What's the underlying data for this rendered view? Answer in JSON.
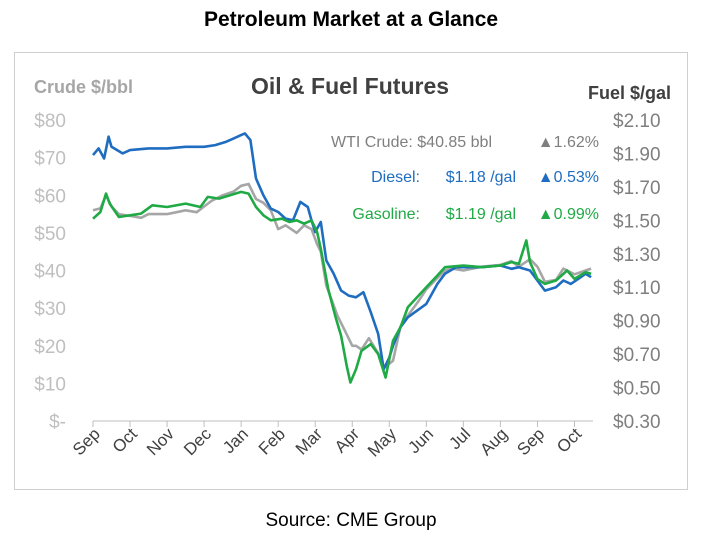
{
  "page": {
    "title": "Petroleum Market at a Glance",
    "source": "Source: CME Group"
  },
  "chart_data": {
    "type": "line",
    "title": "Oil & Fuel Futures",
    "ylabel_left": "Crude $/bbl",
    "ylabel_right": "Fuel $/gal",
    "left_axis": {
      "min": 0,
      "max": 80,
      "ticks": [
        "$-",
        "$10",
        "$20",
        "$30",
        "$40",
        "$50",
        "$60",
        "$70",
        "$80"
      ]
    },
    "right_axis": {
      "min": 0.3,
      "max": 2.1,
      "ticks": [
        "$0.30",
        "$0.50",
        "$0.70",
        "$0.90",
        "$1.10",
        "$1.30",
        "$1.50",
        "$1.70",
        "$1.90",
        "$2.10"
      ]
    },
    "x_ticks": [
      "Sep",
      "Oct",
      "Nov",
      "Dec",
      "Jan",
      "Feb",
      "Mar",
      "Apr",
      "May",
      "Jun",
      "Jul",
      "Aug",
      "Sep",
      "Oct"
    ],
    "x_range": [
      0,
      13.5
    ],
    "grid": false,
    "legend": [
      {
        "label": "WTI Crude:",
        "value": "$40.85 bbl",
        "change": "▲1.62%"
      },
      {
        "label": "Diesel:",
        "value": "$1.18 /gal",
        "change": "▲0.53%"
      },
      {
        "label": "Gasoline:",
        "value": "$1.19 /gal",
        "change": "▲0.99%"
      }
    ],
    "colors": {
      "crude": "#a6a6a6",
      "diesel": "#1f6dc0",
      "gasoline": "#1faa45",
      "text": "#7f7f7f"
    },
    "series": [
      {
        "name": "WTI Crude:",
        "axis": "left",
        "color": "#a6a6a6",
        "points": [
          [
            0,
            56
          ],
          [
            0.2,
            56.5
          ],
          [
            0.35,
            60
          ],
          [
            0.5,
            57
          ],
          [
            0.7,
            55
          ],
          [
            1,
            54.5
          ],
          [
            1.3,
            54
          ],
          [
            1.5,
            55
          ],
          [
            2,
            55
          ],
          [
            2.5,
            56
          ],
          [
            2.8,
            55.5
          ],
          [
            3,
            57
          ],
          [
            3.2,
            58.5
          ],
          [
            3.5,
            60
          ],
          [
            3.8,
            61
          ],
          [
            4.0,
            62.5
          ],
          [
            4.2,
            63
          ],
          [
            4.4,
            59
          ],
          [
            4.6,
            58
          ],
          [
            4.8,
            56
          ],
          [
            5,
            51
          ],
          [
            5.2,
            52
          ],
          [
            5.5,
            50
          ],
          [
            5.7,
            52
          ],
          [
            5.9,
            51
          ],
          [
            6.05,
            47
          ],
          [
            6.15,
            45
          ],
          [
            6.3,
            36
          ],
          [
            6.45,
            32
          ],
          [
            6.6,
            28
          ],
          [
            6.8,
            24
          ],
          [
            7,
            20
          ],
          [
            7.1,
            20
          ],
          [
            7.25,
            19
          ],
          [
            7.45,
            22
          ],
          [
            7.7,
            18
          ],
          [
            7.85,
            14
          ],
          [
            8.1,
            16
          ],
          [
            8.3,
            25
          ],
          [
            8.5,
            28
          ],
          [
            8.8,
            32
          ],
          [
            9,
            35
          ],
          [
            9.3,
            38
          ],
          [
            9.5,
            40
          ],
          [
            9.7,
            40.5
          ],
          [
            10,
            40
          ],
          [
            10.5,
            41
          ],
          [
            11,
            41.5
          ],
          [
            11.3,
            42.5
          ],
          [
            11.5,
            41
          ],
          [
            11.8,
            43
          ],
          [
            12,
            41
          ],
          [
            12.2,
            37
          ],
          [
            12.5,
            37.5
          ],
          [
            12.7,
            40.5
          ],
          [
            13,
            39
          ],
          [
            13.3,
            40
          ],
          [
            13.45,
            40.5
          ]
        ]
      },
      {
        "name": "Diesel:",
        "axis": "right",
        "color": "#1f6dc0",
        "points": [
          [
            0,
            1.89
          ],
          [
            0.15,
            1.93
          ],
          [
            0.3,
            1.87
          ],
          [
            0.42,
            2.0
          ],
          [
            0.5,
            1.94
          ],
          [
            0.8,
            1.9
          ],
          [
            1,
            1.92
          ],
          [
            1.5,
            1.93
          ],
          [
            2,
            1.93
          ],
          [
            2.5,
            1.94
          ],
          [
            3,
            1.94
          ],
          [
            3.3,
            1.95
          ],
          [
            3.6,
            1.97
          ],
          [
            3.8,
            1.99
          ],
          [
            4.0,
            2.01
          ],
          [
            4.1,
            2.02
          ],
          [
            4.25,
            1.98
          ],
          [
            4.4,
            1.75
          ],
          [
            4.6,
            1.65
          ],
          [
            4.8,
            1.57
          ],
          [
            5,
            1.55
          ],
          [
            5.2,
            1.51
          ],
          [
            5.4,
            1.5
          ],
          [
            5.6,
            1.61
          ],
          [
            5.8,
            1.58
          ],
          [
            5.9,
            1.5
          ],
          [
            6.0,
            1.43
          ],
          [
            6.15,
            1.49
          ],
          [
            6.3,
            1.26
          ],
          [
            6.5,
            1.18
          ],
          [
            6.7,
            1.08
          ],
          [
            6.9,
            1.05
          ],
          [
            7.1,
            1.04
          ],
          [
            7.3,
            1.07
          ],
          [
            7.5,
            0.95
          ],
          [
            7.7,
            0.82
          ],
          [
            7.85,
            0.61
          ],
          [
            8.0,
            0.68
          ],
          [
            8.1,
            0.75
          ],
          [
            8.3,
            0.86
          ],
          [
            8.5,
            0.92
          ],
          [
            9,
            1.0
          ],
          [
            9.3,
            1.12
          ],
          [
            9.5,
            1.18
          ],
          [
            9.8,
            1.22
          ],
          [
            10,
            1.22
          ],
          [
            10.5,
            1.22
          ],
          [
            11,
            1.23
          ],
          [
            11.3,
            1.21
          ],
          [
            11.5,
            1.22
          ],
          [
            11.8,
            1.2
          ],
          [
            12,
            1.14
          ],
          [
            12.2,
            1.08
          ],
          [
            12.5,
            1.1
          ],
          [
            12.7,
            1.14
          ],
          [
            12.9,
            1.12
          ],
          [
            13.1,
            1.15
          ],
          [
            13.3,
            1.18
          ],
          [
            13.45,
            1.16
          ]
        ]
      },
      {
        "name": "Gasoline:",
        "axis": "right",
        "color": "#1faa45",
        "points": [
          [
            0,
            1.51
          ],
          [
            0.2,
            1.55
          ],
          [
            0.35,
            1.66
          ],
          [
            0.45,
            1.6
          ],
          [
            0.7,
            1.52
          ],
          [
            1,
            1.53
          ],
          [
            1.3,
            1.54
          ],
          [
            1.6,
            1.59
          ],
          [
            2,
            1.58
          ],
          [
            2.5,
            1.6
          ],
          [
            2.9,
            1.58
          ],
          [
            3.1,
            1.64
          ],
          [
            3.4,
            1.63
          ],
          [
            3.7,
            1.65
          ],
          [
            4,
            1.67
          ],
          [
            4.2,
            1.66
          ],
          [
            4.4,
            1.58
          ],
          [
            4.6,
            1.53
          ],
          [
            4.8,
            1.5
          ],
          [
            5.1,
            1.51
          ],
          [
            5.3,
            1.49
          ],
          [
            5.5,
            1.5
          ],
          [
            5.7,
            1.48
          ],
          [
            5.9,
            1.5
          ],
          [
            6.05,
            1.43
          ],
          [
            6.15,
            1.33
          ],
          [
            6.35,
            1.09
          ],
          [
            6.55,
            0.92
          ],
          [
            6.7,
            0.81
          ],
          [
            6.85,
            0.63
          ],
          [
            6.95,
            0.53
          ],
          [
            7.1,
            0.61
          ],
          [
            7.25,
            0.72
          ],
          [
            7.5,
            0.76
          ],
          [
            7.7,
            0.7
          ],
          [
            7.9,
            0.56
          ],
          [
            8.1,
            0.78
          ],
          [
            8.3,
            0.86
          ],
          [
            8.5,
            0.98
          ],
          [
            9,
            1.1
          ],
          [
            9.3,
            1.17
          ],
          [
            9.5,
            1.22
          ],
          [
            10,
            1.23
          ],
          [
            10.5,
            1.22
          ],
          [
            11,
            1.23
          ],
          [
            11.3,
            1.25
          ],
          [
            11.5,
            1.24
          ],
          [
            11.7,
            1.38
          ],
          [
            11.8,
            1.25
          ],
          [
            12,
            1.15
          ],
          [
            12.2,
            1.12
          ],
          [
            12.5,
            1.14
          ],
          [
            12.8,
            1.2
          ],
          [
            13,
            1.15
          ],
          [
            13.3,
            1.19
          ],
          [
            13.45,
            1.18
          ]
        ]
      }
    ]
  }
}
